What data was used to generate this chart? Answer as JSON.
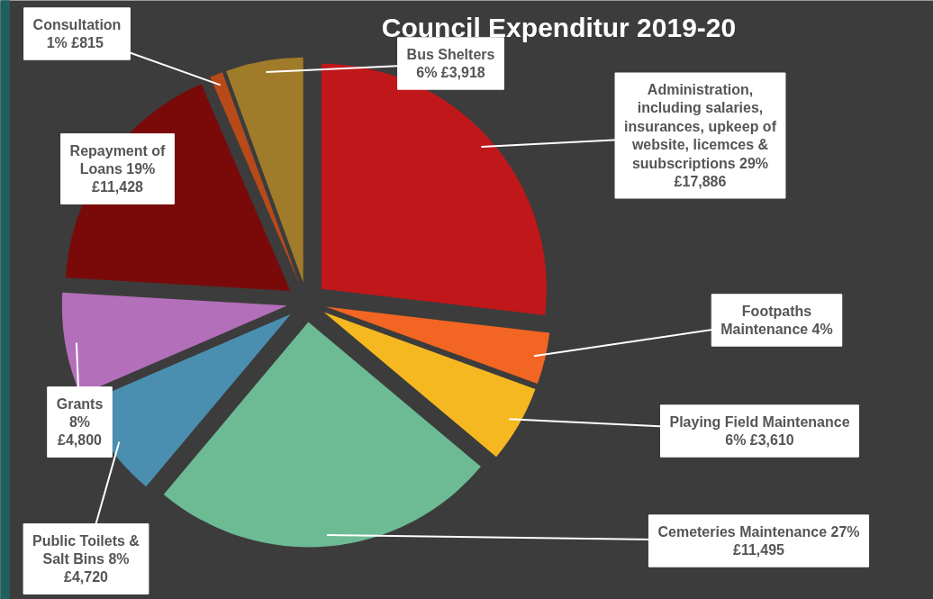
{
  "chart_data": {
    "type": "pie",
    "title": "Council Expenditur 2019-20",
    "categories": [
      "Administration, including salaries, insurances, upkeep of website, licemces & suubscriptions",
      "Footpaths Maintenance",
      "Playing Field Maintenance",
      "Cemeteries Maintenance",
      "Public Toilets & Salt Bins",
      "Grants",
      "Repayment of Loans",
      "Consultation",
      "Bus Shelters"
    ],
    "values": [
      29,
      4,
      6,
      27,
      8,
      8,
      19,
      1,
      6
    ],
    "value_labels": [
      "29%   £17,886",
      "4%",
      "6% £3,610",
      "27% £11,495",
      "8%   £4,720",
      "8%   £4,800",
      "19%  £11,428",
      "1%  £815",
      "6% £3,918"
    ],
    "colors": [
      "#c0171a",
      "#f26522",
      "#f5b820",
      "#6dbb95",
      "#4a8fb0",
      "#b36fba",
      "#7a0a0a",
      "#b84a1a",
      "#a07c2a"
    ]
  }
}
